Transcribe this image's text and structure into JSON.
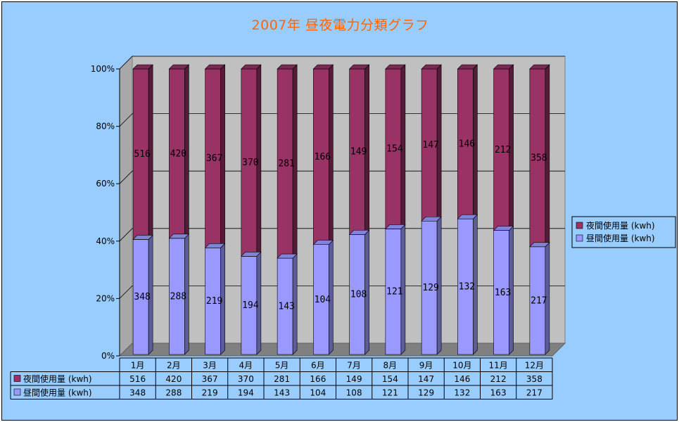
{
  "title": "2007年  昼夜電力分類グラフ",
  "colors": {
    "night": "#993366",
    "day": "#9999ff",
    "wall": "#c0c0c0",
    "background": "#99ccff"
  },
  "chart_data": {
    "type": "bar",
    "stacked": "percent",
    "title": "2007年  昼夜電力分類グラフ",
    "categories": [
      "1月",
      "2月",
      "3月",
      "4月",
      "5月",
      "6月",
      "7月",
      "8月",
      "9月",
      "10月",
      "11月",
      "12月"
    ],
    "series": [
      {
        "name": "夜間使用量 (kwh)",
        "color": "#993366",
        "values": [
          516,
          420,
          367,
          370,
          281,
          166,
          149,
          154,
          147,
          146,
          212,
          358
        ]
      },
      {
        "name": "昼間使用量 (kwh)",
        "color": "#9999ff",
        "values": [
          348,
          288,
          219,
          194,
          143,
          104,
          108,
          121,
          129,
          132,
          163,
          217
        ]
      }
    ],
    "y_ticks": [
      "0%",
      "20%",
      "40%",
      "60%",
      "80%",
      "100%"
    ],
    "ylim": [
      0,
      100
    ],
    "legend": "right",
    "grid": true,
    "data_table": true
  }
}
